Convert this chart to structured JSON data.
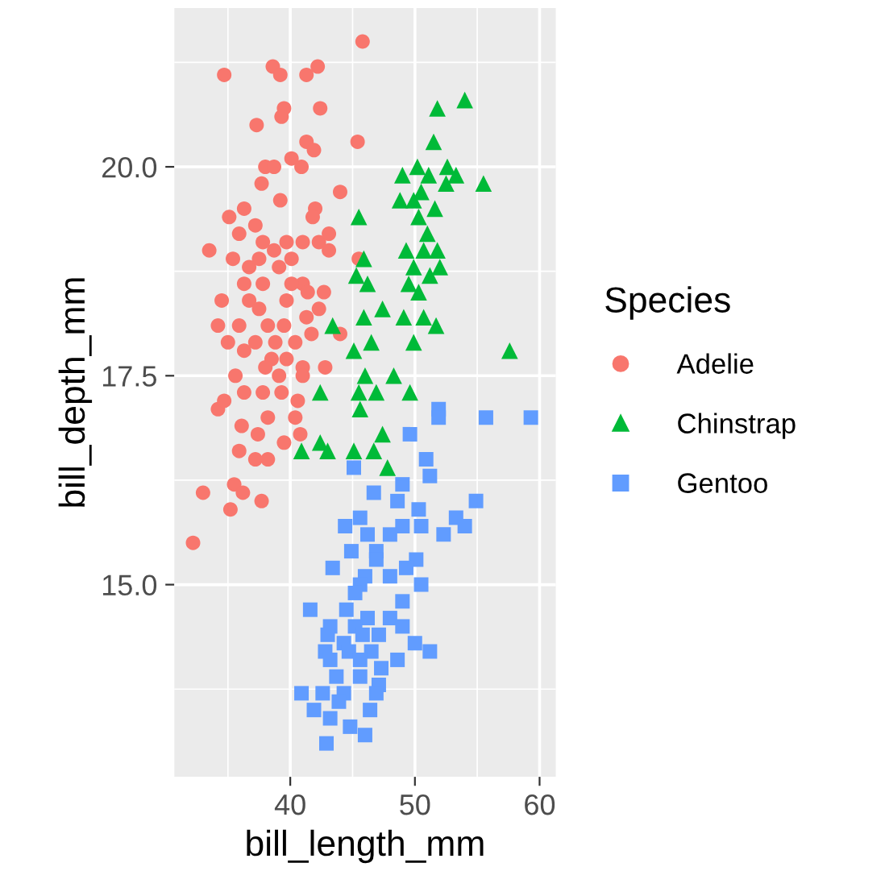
{
  "chart_data": {
    "type": "scatter",
    "xlabel": "bill_length_mm",
    "ylabel": "bill_depth_mm",
    "legend_title": "Species",
    "legend": "right",
    "grid": true,
    "xlim": [
      30.7,
      61.3
    ],
    "ylim": [
      12.7,
      21.9
    ],
    "xticks": [
      40,
      50,
      60
    ],
    "yticks": [
      {
        "value": 15,
        "label": "15.0"
      },
      {
        "value": 17.5,
        "label": "17.5"
      },
      {
        "value": 20,
        "label": "20.0"
      }
    ],
    "series": [
      {
        "name": "Adelie",
        "color": "#f8766d",
        "marker": "circle",
        "x": [
          34.7,
          38.6,
          39.2,
          41.3,
          42.2,
          45.8,
          39.5,
          39.3,
          42.4,
          37.3,
          41.3,
          41.9,
          45.4,
          40.1,
          40.9,
          38.0,
          38.7,
          37.7,
          44.0,
          39.2,
          35.1,
          36.3,
          42.0,
          41.8,
          37.2,
          35.9,
          33.5,
          35.4,
          37.8,
          39.7,
          41.0,
          42.3,
          43.1,
          43.1,
          38.7,
          36.7,
          37.5,
          40.1,
          39.1,
          41.0,
          36.3,
          37.8,
          40.1,
          42.7,
          41.4,
          34.5,
          36.7,
          39.7,
          42.3,
          37.5,
          34.2,
          35.9,
          38.2,
          39.5,
          41.3,
          44.0,
          35.0,
          37.2,
          38.8,
          40.4,
          41.7,
          36.3,
          38.5,
          39.7,
          38.0,
          41.0,
          35.6,
          39.1,
          41.0,
          42.8,
          34.2,
          34.7,
          36.3,
          37.8,
          39.3,
          40.6,
          36.1,
          38.2,
          40.4,
          37.4,
          39.5,
          40.8,
          35.9,
          37.2,
          38.2,
          33.0,
          35.5,
          36.2,
          37.7,
          35.2,
          32.2,
          45.5
        ],
        "values": [
          21.1,
          21.2,
          21.1,
          21.1,
          21.2,
          21.5,
          20.7,
          20.6,
          20.7,
          20.5,
          20.3,
          20.2,
          20.3,
          20.1,
          20.0,
          20.0,
          20.0,
          19.8,
          19.7,
          19.6,
          19.4,
          19.5,
          19.5,
          19.4,
          19.3,
          19.2,
          19.0,
          18.9,
          19.1,
          19.1,
          19.1,
          19.1,
          19.2,
          19.0,
          19.0,
          18.8,
          18.9,
          18.9,
          18.8,
          18.6,
          18.6,
          18.6,
          18.6,
          18.5,
          18.5,
          18.4,
          18.4,
          18.4,
          18.3,
          18.3,
          18.1,
          18.1,
          18.1,
          18.1,
          18.2,
          18.0,
          17.9,
          17.9,
          17.9,
          17.9,
          18.0,
          17.8,
          17.7,
          17.7,
          17.6,
          17.6,
          17.5,
          17.5,
          17.5,
          17.6,
          17.1,
          17.2,
          17.3,
          17.3,
          17.3,
          17.2,
          16.9,
          17.0,
          17.0,
          16.8,
          16.7,
          16.8,
          16.6,
          16.5,
          16.5,
          16.1,
          16.2,
          16.1,
          16.0,
          15.9,
          15.5,
          18.9
        ]
      },
      {
        "name": "Chinstrap",
        "color": "#00ba38",
        "marker": "triangle",
        "x": [
          54.0,
          51.8,
          51.5,
          50.2,
          49.0,
          51.1,
          52.6,
          53.3,
          55.5,
          52.5,
          50.5,
          48.8,
          49.9,
          51.6,
          50.3,
          45.5,
          51.0,
          49.3,
          51.8,
          50.7,
          45.9,
          49.9,
          52.0,
          45.3,
          51.2,
          46.2,
          49.5,
          50.3,
          47.4,
          45.9,
          49.1,
          50.7,
          43.4,
          51.7,
          46.5,
          45.1,
          49.9,
          57.6,
          46.0,
          48.3,
          42.4,
          45.5,
          46.9,
          49.6,
          45.6,
          47.4,
          42.4,
          43.0,
          40.9,
          45.1,
          46.7,
          47.8
        ],
        "values": [
          20.8,
          20.7,
          20.3,
          20.0,
          19.9,
          19.9,
          20.0,
          19.9,
          19.8,
          19.8,
          19.7,
          19.6,
          19.6,
          19.5,
          19.4,
          19.4,
          19.2,
          19.0,
          19.0,
          19.0,
          18.9,
          18.8,
          18.8,
          18.7,
          18.7,
          18.6,
          18.6,
          18.5,
          18.3,
          18.2,
          18.2,
          18.2,
          18.1,
          18.1,
          17.9,
          17.8,
          17.9,
          17.8,
          17.5,
          17.5,
          17.3,
          17.3,
          17.3,
          17.3,
          17.1,
          16.8,
          16.7,
          16.6,
          16.6,
          16.6,
          16.6,
          16.4
        ]
      },
      {
        "name": "Gentoo",
        "color": "#619cff",
        "marker": "square",
        "x": [
          51.9,
          51.9,
          55.7,
          59.3,
          49.6,
          50.9,
          45.1,
          51.2,
          49.0,
          46.7,
          48.6,
          50.3,
          54.9,
          53.3,
          54.0,
          52.3,
          45.6,
          44.4,
          49.0,
          50.5,
          46.2,
          48.0,
          44.9,
          46.9,
          43.4,
          46.9,
          50.1,
          49.3,
          46.0,
          50.5,
          48.0,
          45.6,
          49.0,
          45.2,
          41.6,
          44.5,
          46.2,
          48.0,
          43.2,
          45.2,
          49.0,
          47.1,
          43.0,
          44.3,
          45.8,
          50.0,
          51.2,
          42.8,
          44.7,
          46.5,
          48.6,
          43.2,
          45.6,
          47.3,
          43.7,
          45.6,
          47.1,
          40.9,
          42.6,
          44.3,
          46.9,
          41.9,
          43.9,
          46.4,
          43.2,
          44.8,
          46.0,
          42.9
        ],
        "values": [
          17.1,
          17.0,
          17.0,
          17.0,
          16.8,
          16.5,
          16.4,
          16.3,
          16.2,
          16.1,
          16.0,
          15.9,
          16.0,
          15.8,
          15.7,
          15.6,
          15.8,
          15.7,
          15.7,
          15.7,
          15.6,
          15.6,
          15.4,
          15.4,
          15.2,
          15.3,
          15.3,
          15.2,
          15.1,
          15.0,
          15.1,
          15.0,
          14.8,
          14.9,
          14.7,
          14.7,
          14.6,
          14.6,
          14.5,
          14.5,
          14.5,
          14.4,
          14.4,
          14.3,
          14.4,
          14.3,
          14.2,
          14.2,
          14.2,
          14.2,
          14.1,
          14.1,
          14.1,
          14.0,
          13.9,
          13.9,
          13.8,
          13.7,
          13.7,
          13.7,
          13.7,
          13.5,
          13.6,
          13.5,
          13.4,
          13.3,
          13.2,
          13.1
        ]
      }
    ]
  }
}
